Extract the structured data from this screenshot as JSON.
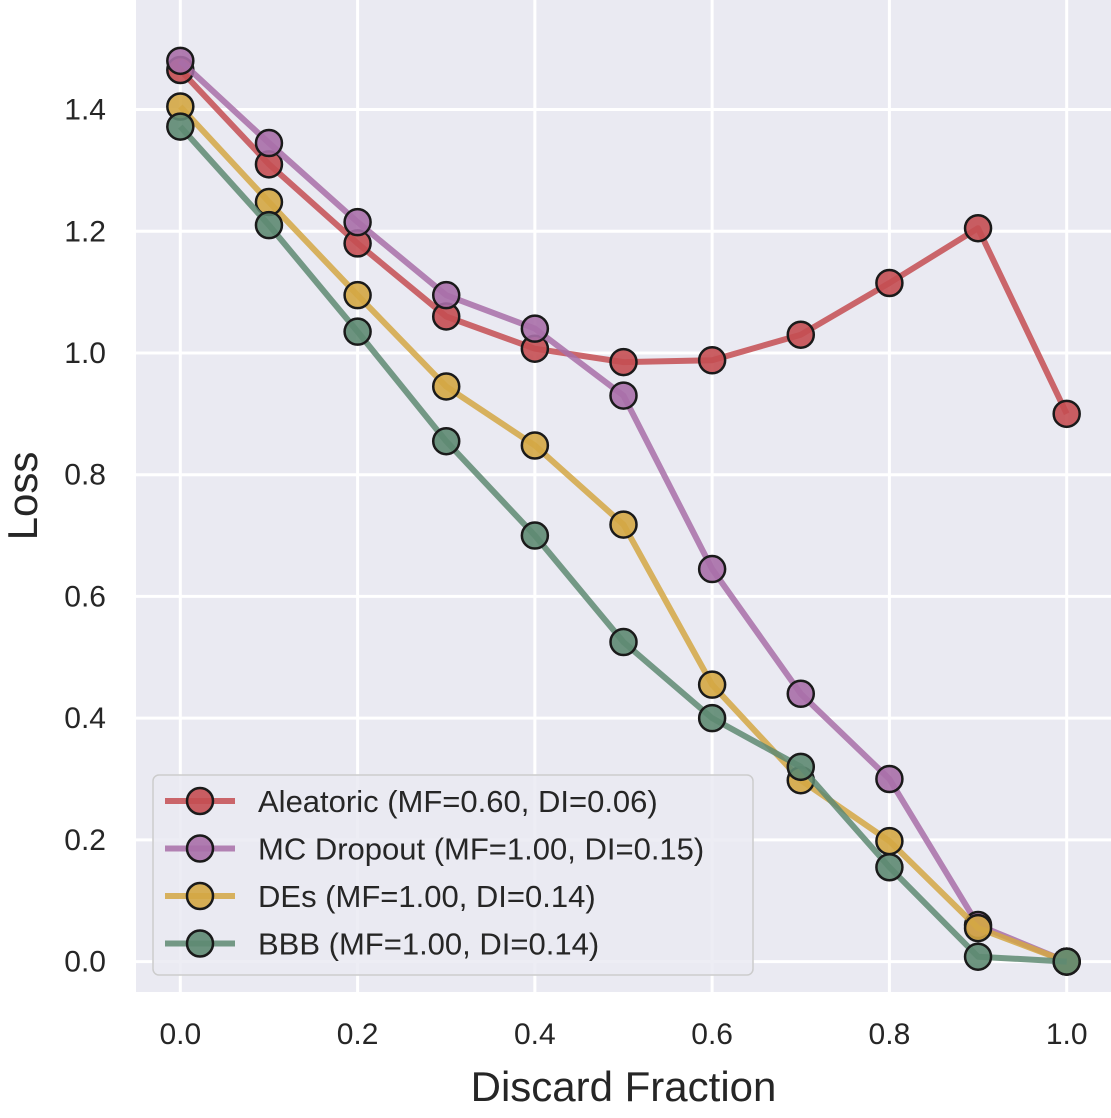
{
  "chart_data": {
    "type": "line",
    "title": "",
    "xlabel": "Discard Fraction",
    "ylabel": "Loss",
    "xlim": [
      -0.05,
      1.05
    ],
    "ylim": [
      -0.05,
      1.58
    ],
    "xticks": [
      0.0,
      0.2,
      0.4,
      0.6,
      0.8,
      1.0
    ],
    "xtick_labels": [
      "0.0",
      "0.2",
      "0.4",
      "0.6",
      "0.8",
      "1.0"
    ],
    "yticks": [
      0.0,
      0.2,
      0.4,
      0.6,
      0.8,
      1.0,
      1.2,
      1.4
    ],
    "ytick_labels": [
      "0.0",
      "0.2",
      "0.4",
      "0.6",
      "0.8",
      "1.0",
      "1.2",
      "1.4"
    ],
    "grid": true,
    "legend_position": "lower-left",
    "x": [
      0.0,
      0.1,
      0.2,
      0.3,
      0.4,
      0.5,
      0.6,
      0.7,
      0.8,
      0.9,
      1.0
    ],
    "series": [
      {
        "name": "Aleatoric (MF=0.60, DI=0.06)",
        "color": "#c44e52",
        "values": [
          1.465,
          1.31,
          1.18,
          1.06,
          1.007,
          0.985,
          0.988,
          1.03,
          1.115,
          1.205,
          0.9
        ]
      },
      {
        "name": "MC Dropout (MF=1.00, DI=0.15)",
        "color": "#a86fa8",
        "values": [
          1.48,
          1.345,
          1.215,
          1.095,
          1.04,
          0.93,
          0.645,
          0.44,
          0.3,
          0.06,
          0.0
        ]
      },
      {
        "name": "DEs (MF=1.00, DI=0.14)",
        "color": "#d4a744",
        "values": [
          1.405,
          1.248,
          1.095,
          0.945,
          0.848,
          0.718,
          0.455,
          0.298,
          0.198,
          0.055,
          0.0
        ]
      },
      {
        "name": "BBB (MF=1.00, DI=0.14)",
        "color": "#5e8a72",
        "values": [
          1.372,
          1.21,
          1.035,
          0.855,
          0.7,
          0.525,
          0.4,
          0.32,
          0.155,
          0.008,
          0.0
        ]
      }
    ],
    "colors": {
      "plot_background": "#eaeaf2",
      "grid": "#ffffff",
      "marker_edge": "#1a1a1a",
      "legend_background": "#eaeaf2",
      "legend_border": "#cccccc"
    }
  }
}
